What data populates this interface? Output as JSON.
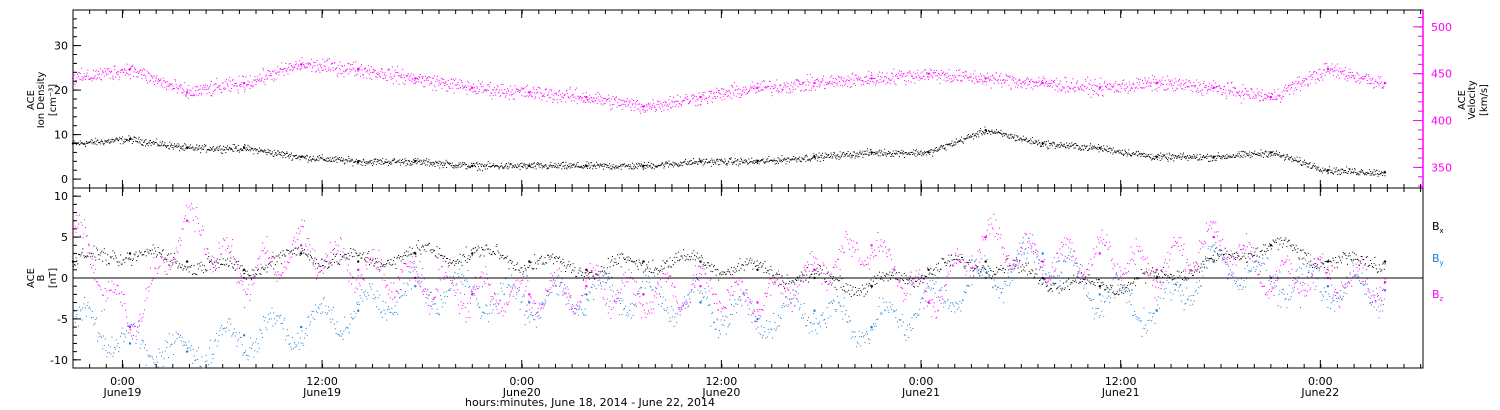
{
  "chart_data": [
    {
      "type": "scatter",
      "panel": "top",
      "y_left_label": [
        "ACE",
        "Ion Density",
        "[cm⁻³]"
      ],
      "y_right_label": [
        "ACE",
        "Velocity",
        "[km/s]"
      ],
      "ylim_left": [
        -2,
        38
      ],
      "ylim_right": [
        328,
        518
      ],
      "yticks_left": [
        0,
        10,
        20,
        30
      ],
      "yticks_right": [
        350,
        400,
        450,
        500
      ],
      "left_color": "#000000",
      "right_color": "#ff00ff",
      "series": [
        {
          "axis": "left",
          "color": "#000000",
          "t_hours": [
            0,
            6,
            12,
            18,
            24,
            30,
            36,
            42,
            48,
            54,
            60,
            66,
            72,
            78,
            84,
            90,
            96,
            102,
            108,
            114,
            120,
            126,
            132,
            138
          ],
          "values": [
            8,
            9,
            7,
            7,
            5,
            4,
            4,
            3,
            3,
            3,
            3,
            4,
            4,
            5,
            6,
            6,
            11,
            8,
            7,
            5,
            5,
            6,
            2,
            1.5
          ]
        },
        {
          "axis": "right",
          "color": "#ff00ff",
          "t_hours": [
            0,
            6,
            12,
            18,
            24,
            30,
            36,
            42,
            48,
            54,
            60,
            66,
            72,
            78,
            84,
            90,
            96,
            102,
            108,
            114,
            120,
            126,
            132,
            138
          ],
          "values": [
            445,
            455,
            430,
            440,
            460,
            455,
            445,
            435,
            430,
            425,
            415,
            425,
            435,
            440,
            445,
            450,
            445,
            440,
            435,
            440,
            435,
            425,
            455,
            440
          ]
        }
      ]
    },
    {
      "type": "scatter",
      "panel": "bottom",
      "y_label": [
        "ACE",
        "B",
        "[nT]"
      ],
      "ylim": [
        -11,
        11
      ],
      "yticks": [
        -10,
        -5,
        0,
        5,
        10
      ],
      "series": [
        {
          "name": "B",
          "sub": "x",
          "color": "#000000",
          "t_hours": [
            0,
            6,
            12,
            18,
            24,
            30,
            36,
            42,
            48,
            54,
            60,
            66,
            72,
            78,
            84,
            90,
            96,
            102,
            108,
            114,
            120,
            126,
            132,
            138
          ],
          "values": [
            2,
            3,
            2,
            1,
            3,
            2,
            3,
            3,
            2,
            1,
            2,
            2,
            1,
            0,
            -1,
            1,
            2,
            0,
            -1,
            0,
            2,
            4,
            2,
            2
          ]
        },
        {
          "name": "B",
          "sub": "y",
          "color": "#1a7fd6",
          "t_hours": [
            0,
            6,
            12,
            18,
            24,
            30,
            36,
            42,
            48,
            54,
            60,
            66,
            72,
            78,
            84,
            90,
            96,
            102,
            108,
            114,
            120,
            126,
            132,
            138
          ],
          "values": [
            -5,
            -8,
            -9,
            -7,
            -6,
            -4,
            -1,
            -2,
            -3,
            -2,
            -2,
            -3,
            -5,
            -4,
            -6,
            -3,
            0,
            3,
            -2,
            -4,
            2,
            0,
            -1,
            -1.5
          ]
        },
        {
          "name": "B",
          "sub": "z",
          "color": "#ff00ff",
          "t_hours": [
            0,
            6,
            12,
            18,
            24,
            30,
            36,
            42,
            48,
            54,
            60,
            66,
            72,
            78,
            84,
            90,
            96,
            102,
            108,
            114,
            120,
            126,
            132,
            138
          ],
          "values": [
            6,
            -6,
            7,
            0,
            4,
            1,
            0,
            -2,
            -2,
            -1,
            -2,
            -1,
            -3,
            1,
            4,
            -3,
            5,
            2,
            3,
            1,
            5,
            0,
            0,
            -0.5
          ]
        }
      ]
    }
  ],
  "x_axis": {
    "ticks": [
      {
        "t_hours": 5.2,
        "time": "0:00",
        "date": "June19"
      },
      {
        "t_hours": 26.2,
        "time": "12:00",
        "date": "June19"
      },
      {
        "t_hours": 47.2,
        "time": "0:00",
        "date": "June20"
      },
      {
        "t_hours": 68.2,
        "time": "12:00",
        "date": "June20"
      },
      {
        "t_hours": 89.2,
        "time": "0:00",
        "date": "June21"
      },
      {
        "t_hours": 110.2,
        "time": "12:00",
        "date": "June21"
      },
      {
        "t_hours": 131.2,
        "time": "0:00",
        "date": "June22"
      }
    ],
    "label": "hours:minutes, June 18, 2014 - June 22, 2014",
    "t_range": [
      0,
      142
    ]
  }
}
